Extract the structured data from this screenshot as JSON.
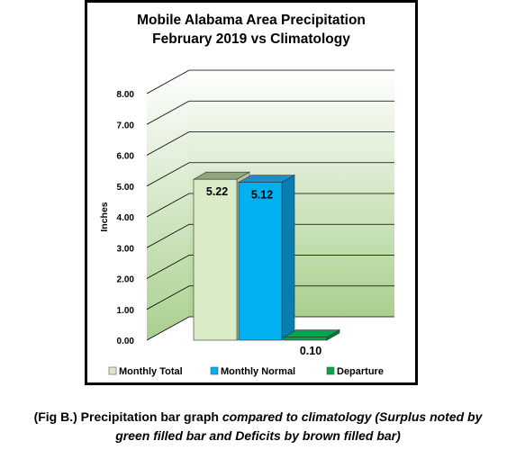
{
  "caption": {
    "line1_prefix": "(Fig B.) Precipitation bar graph ",
    "line1_italic": "compared to climatology (Surplus noted by",
    "line2_italic": "green filled bar and Deficits by brown filled bar)"
  },
  "chart_data": {
    "type": "bar",
    "title": "Mobile Alabama Area Precipitation",
    "subtitle": "February 2019 vs Climatology",
    "ylabel": "Inches",
    "xlabel": "",
    "ylim": [
      0,
      8
    ],
    "yticks": [
      "0.00",
      "1.00",
      "2.00",
      "3.00",
      "4.00",
      "5.00",
      "6.00",
      "7.00",
      "8.00"
    ],
    "grid": true,
    "legend_position": "bottom",
    "series": [
      {
        "name": "Monthly Total",
        "value": 5.22,
        "label": "5.22",
        "color": "#d9ecc7",
        "side_color": "#b4c7a2",
        "top_color": "#8fa67d"
      },
      {
        "name": "Monthly Normal",
        "value": 5.12,
        "label": "5.12",
        "color": "#00b0f0",
        "side_color": "#0a7db0",
        "top_color": "#1a90c8"
      },
      {
        "name": "Departure",
        "value": 0.1,
        "label": "0.10",
        "color": "#00a550",
        "side_color": "#007a3a",
        "top_color": "#00a550"
      }
    ],
    "colors": {
      "plot_top": "#ffffff",
      "plot_bottom": "#a9d08e",
      "grid": "#000000"
    }
  }
}
